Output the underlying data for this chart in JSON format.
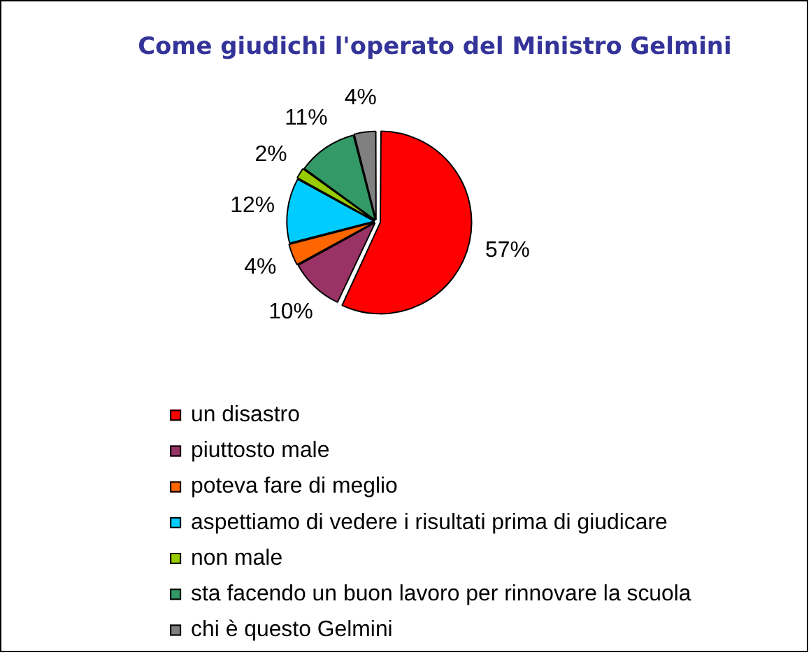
{
  "chart_data": {
    "type": "pie",
    "title": "Come giudichi l'operato del Ministro Gelmini",
    "categories": [
      "un disastro",
      "piuttosto male",
      "poteva fare di meglio",
      "aspettiamo di vedere i risultati prima di giudicare",
      "non male",
      "sta facendo un buon lavoro per rinnovare la scuola",
      "chi è questo Gelmini"
    ],
    "values": [
      57,
      10,
      4,
      12,
      2,
      11,
      4
    ],
    "colors": [
      "#ff0000",
      "#993366",
      "#ff6600",
      "#00ccff",
      "#99cc00",
      "#339966",
      "#808080"
    ],
    "value_labels": [
      "57%",
      "10%",
      "4%",
      "12%",
      "2%",
      "11%",
      "4%"
    ],
    "legend": "bottom"
  }
}
